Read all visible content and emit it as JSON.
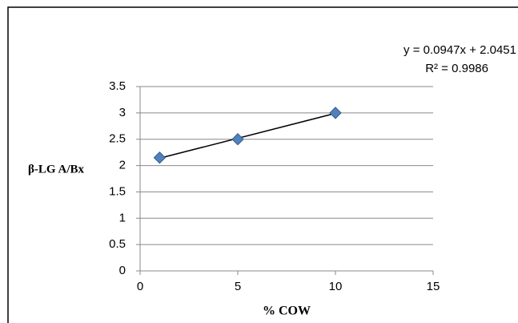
{
  "chart_data": {
    "type": "scatter",
    "x_label": "% COW",
    "y_label": "β-LG A/Bx",
    "annotations": [
      "y = 0.0947x + 2.0451",
      "R² = 0.9986"
    ],
    "series": [
      {
        "name": "β-LG A/Bx",
        "color": "#4f81bd",
        "x": [
          1,
          5,
          10
        ],
        "values": [
          2.15,
          2.5,
          3.0
        ]
      }
    ],
    "trendline": "linear",
    "xlim": [
      0,
      15
    ],
    "xticks": [
      0,
      5,
      10,
      15
    ],
    "ylim": [
      0,
      3.5
    ],
    "yticks": [
      0,
      0.5,
      1,
      1.5,
      2,
      2.5,
      3,
      3.5
    ],
    "grid": true
  }
}
